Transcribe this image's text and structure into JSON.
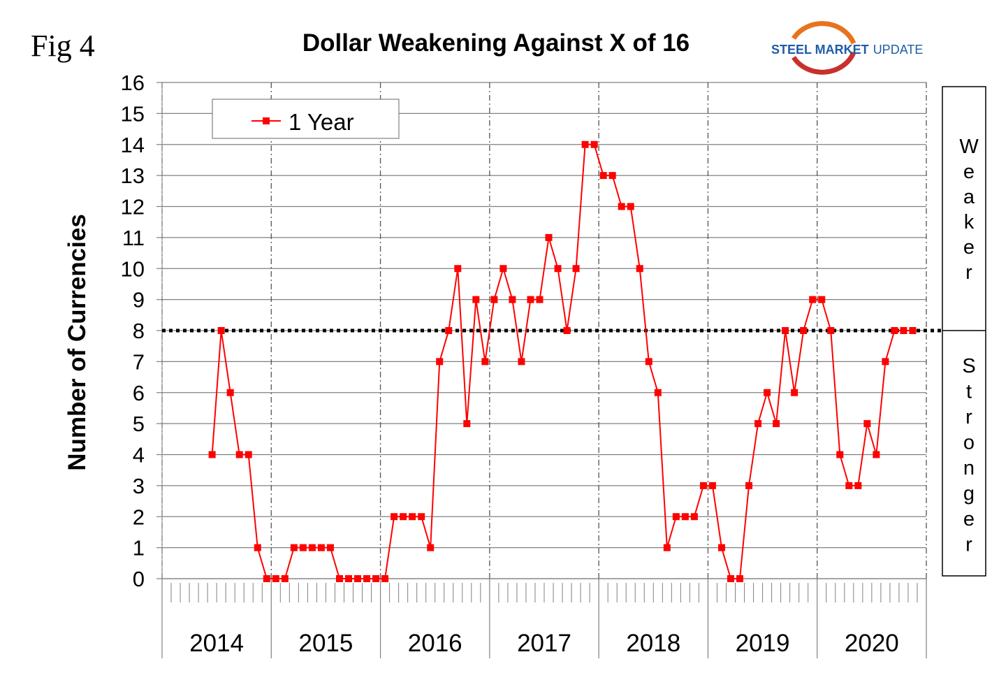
{
  "figure_label": "Fig 4",
  "logo": {
    "text_bold": "STEEL MARKET",
    "text_light": "UPDATE"
  },
  "side_labels": {
    "weaker": "Weaker",
    "stronger": "Stronger"
  },
  "colors": {
    "series": "#ff0000",
    "grid": "#808080",
    "axis": "#808080",
    "reference": "#000000",
    "logo_blue": "#1f5ca8",
    "logo_orange": "#e8731e",
    "logo_red": "#c9302c"
  },
  "chart_data": {
    "type": "line",
    "title": "Dollar Weakening Against X of 16",
    "xlabel": "",
    "ylabel": "Number of Currencies",
    "ylim": [
      0,
      16
    ],
    "yticks": [
      0,
      1,
      2,
      3,
      4,
      5,
      6,
      7,
      8,
      9,
      10,
      11,
      12,
      13,
      14,
      15,
      16
    ],
    "year_labels": [
      "2014",
      "2015",
      "2016",
      "2017",
      "2018",
      "2019",
      "2020"
    ],
    "months_per_year": 12,
    "reference_line": 8,
    "legend": {
      "position": "top-left",
      "entries": [
        "1 Year"
      ]
    },
    "series": [
      {
        "name": "1 Year",
        "start_month_index": 5,
        "values": [
          4,
          8,
          6,
          4,
          4,
          1,
          0,
          0,
          0,
          1,
          1,
          1,
          1,
          1,
          0,
          0,
          0,
          0,
          0,
          0,
          2,
          2,
          2,
          2,
          1,
          7,
          8,
          10,
          5,
          9,
          7,
          9,
          10,
          9,
          7,
          9,
          9,
          11,
          10,
          8,
          10,
          14,
          14,
          13,
          13,
          12,
          12,
          10,
          7,
          6,
          1,
          2,
          2,
          2,
          3,
          3,
          1,
          0,
          0,
          3,
          5,
          6,
          5,
          8,
          6,
          8,
          9,
          9,
          8,
          4,
          3,
          3,
          5,
          4,
          7,
          8,
          8,
          8
        ]
      }
    ]
  }
}
